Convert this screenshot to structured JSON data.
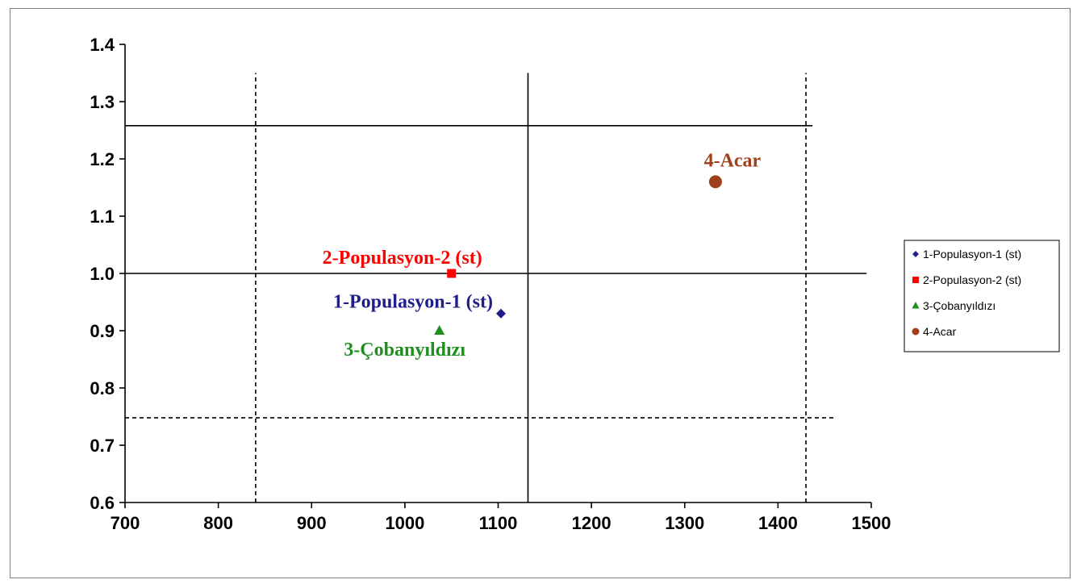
{
  "chart_data": {
    "type": "scatter",
    "xlim": [
      700,
      1500
    ],
    "ylim": [
      0.6,
      1.4
    ],
    "x_ticks": [
      700,
      800,
      900,
      1000,
      1100,
      1200,
      1300,
      1400,
      1500
    ],
    "y_ticks": [
      "0.6",
      "0.7",
      "0.8",
      "0.9",
      "1.0",
      "1.1",
      "1.2",
      "1.3",
      "1.4"
    ],
    "grid": false,
    "legend_position": "right",
    "series": [
      {
        "name": "1-Populasyon-1 (st)",
        "label": "1-Populasyon-1 (st)",
        "x": 1103,
        "y": 0.93,
        "marker": "diamond",
        "color": "#1f1f8a"
      },
      {
        "name": "2-Populasyon-2 (st)",
        "label": "2-Populasyon-2 (st)",
        "x": 1050,
        "y": 1.0,
        "marker": "square",
        "color": "#ff0000"
      },
      {
        "name": "3-Çobanyıldızı",
        "label": "3-Çobanyıldızı",
        "x": 1037,
        "y": 0.9,
        "marker": "triangle",
        "color": "#1f8f1f"
      },
      {
        "name": "4-Acar",
        "label": "4-Acar",
        "x": 1333,
        "y": 1.16,
        "marker": "circle",
        "color": "#a0401a"
      }
    ],
    "reference_lines": [
      {
        "orientation": "horizontal",
        "value": 1.258,
        "from": 700,
        "to": 1437,
        "style": "solid"
      },
      {
        "orientation": "horizontal",
        "value": 1.0,
        "from": 700,
        "to": 1495,
        "style": "solid"
      },
      {
        "orientation": "horizontal",
        "value": 0.748,
        "from": 700,
        "to": 1462,
        "style": "dashed"
      },
      {
        "orientation": "vertical",
        "value": 1132,
        "from": 0.6,
        "to": 1.35,
        "style": "solid"
      },
      {
        "orientation": "vertical",
        "value": 840,
        "from": 0.6,
        "to": 1.35,
        "style": "dashed"
      },
      {
        "orientation": "vertical",
        "value": 1430,
        "from": 0.6,
        "to": 1.35,
        "style": "dashed"
      }
    ]
  }
}
